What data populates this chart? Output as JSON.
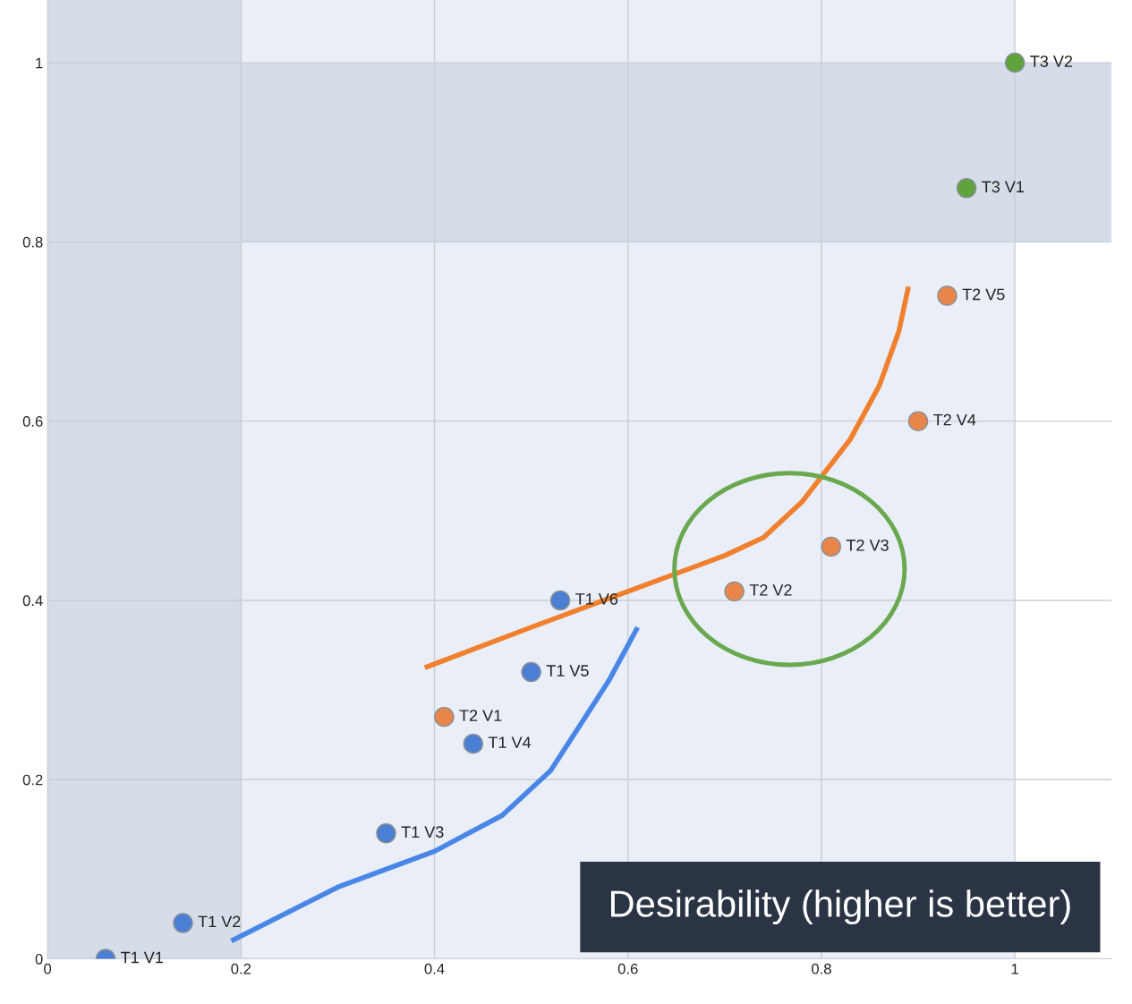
{
  "chart_data": {
    "type": "scatter",
    "xlim": [
      0,
      1.1
    ],
    "ylim": [
      0,
      1.07
    ],
    "xticks": [
      0,
      0.2,
      0.4,
      0.6,
      0.8,
      1
    ],
    "yticks": [
      0,
      0.2,
      0.4,
      0.6,
      0.8,
      1
    ],
    "grid": true,
    "marker": "circle",
    "bands": [
      {
        "axis": "x",
        "from": 0.2,
        "to": 1,
        "color": "#e9eef7"
      },
      {
        "axis": "y",
        "from": 0.8,
        "to": 1,
        "color": "#d5dde8"
      },
      {
        "axis": "x",
        "from": 0,
        "to": 0.2,
        "color": "#d5dde8"
      }
    ],
    "series": [
      {
        "color": "#4a7fd4",
        "x": [
          0.06,
          0.14,
          0.35,
          0.44,
          0.5,
          0.53
        ],
        "values": [
          0,
          0.04,
          0.14,
          0.24,
          0.32,
          0.4
        ]
      },
      {
        "color": "#e8864a",
        "x": [
          0.41,
          0.71,
          0.81,
          0.9,
          0.93
        ],
        "values": [
          0.27,
          0.41,
          0.46,
          0.6,
          0.74
        ]
      },
      {
        "color": "#5fa33a",
        "x": [
          0.95,
          1.0
        ],
        "values": [
          0.86,
          1.0
        ]
      },
      {
        "type": "line",
        "color": "#4a86e8",
        "marker": "none",
        "x": [
          0.19,
          0.3,
          0.4,
          0.47,
          0.52,
          0.55,
          0.58,
          0.61
        ],
        "values": [
          0.02,
          0.08,
          0.12,
          0.16,
          0.21,
          0.26,
          0.31,
          0.37
        ]
      },
      {
        "type": "line",
        "color": "#f0802e",
        "marker": "none",
        "x": [
          0.39,
          0.5,
          0.6,
          0.7,
          0.74,
          0.78,
          0.83,
          0.86,
          0.88,
          0.89
        ],
        "values": [
          0.325,
          0.37,
          0.41,
          0.45,
          0.47,
          0.51,
          0.58,
          0.64,
          0.7,
          0.75
        ]
      }
    ],
    "annotations": [
      {
        "text": "T1 V1",
        "x": 0.06,
        "y": 0
      },
      {
        "text": "T1 V2",
        "x": 0.14,
        "y": 0.04
      },
      {
        "text": "T1 V3",
        "x": 0.35,
        "y": 0.14
      },
      {
        "text": "T1 V4",
        "x": 0.44,
        "y": 0.24
      },
      {
        "text": "T1 V5",
        "x": 0.5,
        "y": 0.32
      },
      {
        "text": "T1 V6",
        "x": 0.53,
        "y": 0.4
      },
      {
        "text": "T2 V1",
        "x": 0.41,
        "y": 0.27
      },
      {
        "text": "T2 V2",
        "x": 0.71,
        "y": 0.41
      },
      {
        "text": "T2 V3",
        "x": 0.81,
        "y": 0.46
      },
      {
        "text": "T2 V4",
        "x": 0.9,
        "y": 0.6
      },
      {
        "text": "T2 V5",
        "x": 0.93,
        "y": 0.74
      },
      {
        "text": "T3 V1",
        "x": 0.95,
        "y": 0.86
      },
      {
        "text": "T3 V2",
        "x": 1.0,
        "y": 1.0
      },
      "Desirability (higher is better)"
    ]
  }
}
